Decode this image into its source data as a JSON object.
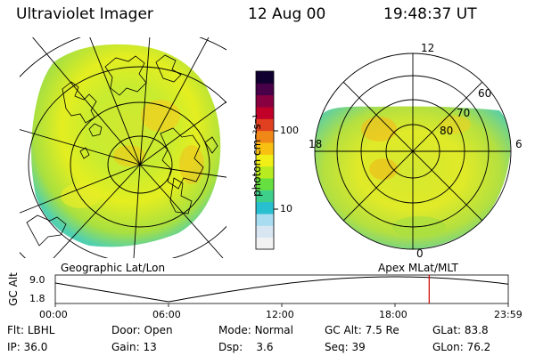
{
  "header": {
    "instrument": "Ultraviolet Imager",
    "date": "12 Aug 00",
    "time": "19:48:37 UT"
  },
  "colorbar": {
    "label": "photon cm⁻²s⁻¹",
    "ticks": [
      {
        "label": "100",
        "value": 100
      },
      {
        "label": "10",
        "value": 10
      }
    ],
    "colors": [
      "#f2f2f2",
      "#d8e6f2",
      "#a8dcf0",
      "#28c0d0",
      "#3ed08a",
      "#66e040",
      "#b8ec20",
      "#f0f018",
      "#f8c010",
      "#f08818",
      "#e04020",
      "#c00028",
      "#880040",
      "#480048",
      "#100030"
    ]
  },
  "left_panel": {
    "label": "Geographic Lat/Lon"
  },
  "right_panel": {
    "label": "Apex MLat/MLT",
    "mlt_labels": {
      "top": "12",
      "bottom": "0",
      "left": "18",
      "right": "6"
    },
    "lat_labels": [
      "60",
      "70",
      "80"
    ]
  },
  "altitude_plot": {
    "ylabel": "GC Alt",
    "y_ticks": [
      "9.0",
      "1.8"
    ],
    "x_ticks": [
      "00:00",
      "06:00",
      "12:00",
      "18:00",
      "23:59"
    ],
    "current_marker_hours": 19.81,
    "marker_color": "#cc0000"
  },
  "info": {
    "row1": [
      {
        "key": "Flt:",
        "value": "LBHL"
      },
      {
        "key": "Door:",
        "value": "Open"
      },
      {
        "key": "Mode:",
        "value": "Normal"
      },
      {
        "key": "GC Alt:",
        "value": "7.5 Re"
      },
      {
        "key": "GLat:",
        "value": "83.8"
      }
    ],
    "row2": [
      {
        "key": "IP:",
        "value": "36.0"
      },
      {
        "key": "Gain:",
        "value": "13"
      },
      {
        "key": "Dsp:",
        "value": "3.6"
      },
      {
        "key": "Seq:",
        "value": "39"
      },
      {
        "key": "GLon:",
        "value": "76.2"
      }
    ]
  }
}
